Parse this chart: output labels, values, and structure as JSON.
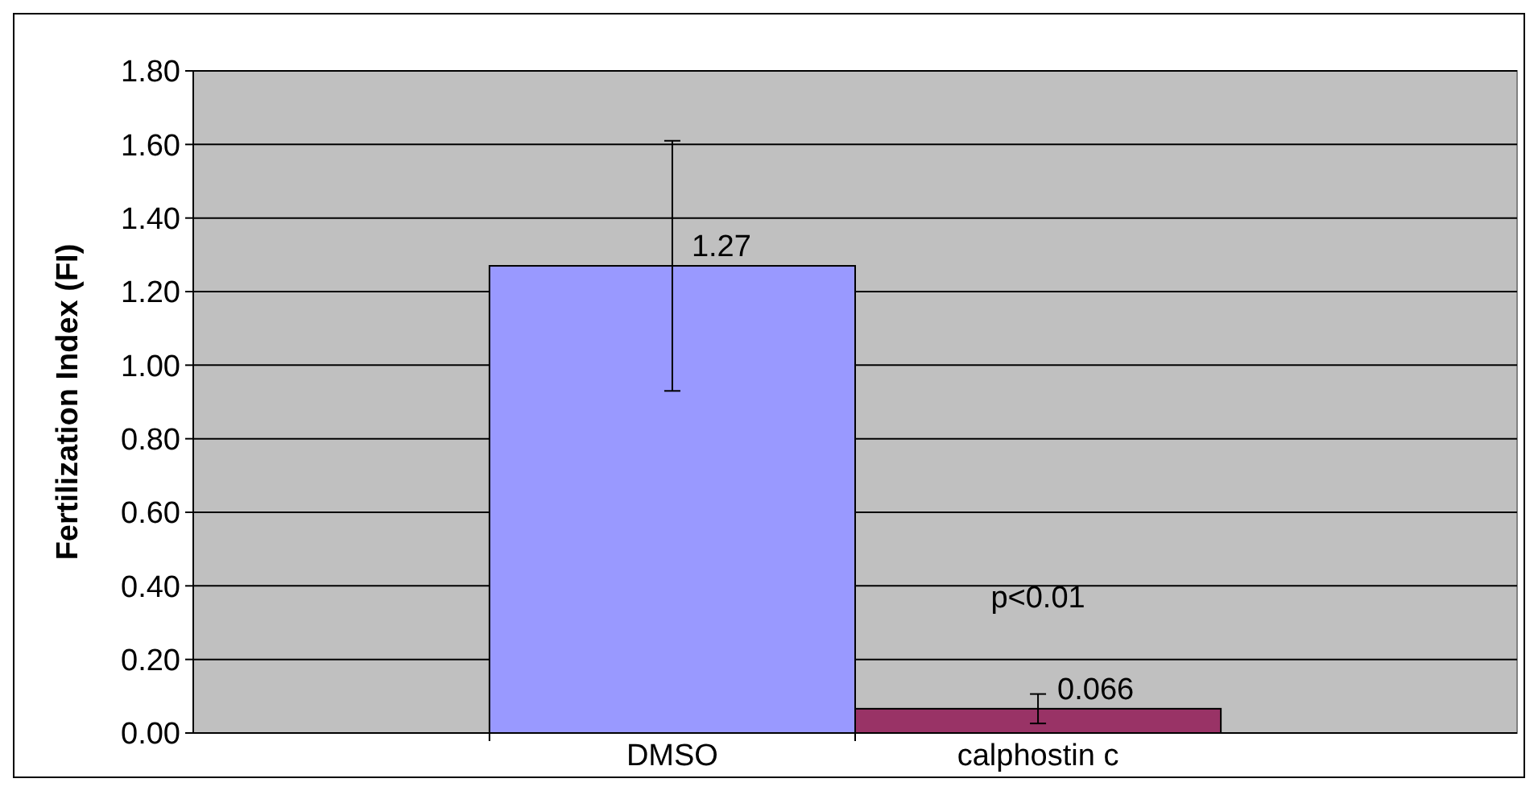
{
  "chart_data": {
    "type": "bar",
    "ylabel": "Fertilization Index (FI)",
    "categories": [
      "DMSO",
      "calphostin c"
    ],
    "values": [
      1.27,
      0.066
    ],
    "colors": [
      "#9999ff",
      "#993366"
    ],
    "errors": [
      0.34,
      0.04
    ],
    "data_labels": true,
    "annotations": [
      "p<0.01"
    ],
    "ylim": [
      0,
      1.8
    ],
    "yticks": [
      {
        "value": 0,
        "label": "0.00"
      },
      {
        "value": 0.2,
        "label": "0.20"
      },
      {
        "value": 0.4,
        "label": "0.40"
      },
      {
        "value": 0.6,
        "label": "0.60"
      },
      {
        "value": 0.8,
        "label": "0.80"
      },
      {
        "value": 1,
        "label": "1.00"
      },
      {
        "value": 1.2,
        "label": "1.20"
      },
      {
        "value": 1.4,
        "label": "1.40"
      },
      {
        "value": 1.6,
        "label": "1.60"
      },
      {
        "value": 1.8,
        "label": "1.80"
      }
    ],
    "grid": "y"
  }
}
